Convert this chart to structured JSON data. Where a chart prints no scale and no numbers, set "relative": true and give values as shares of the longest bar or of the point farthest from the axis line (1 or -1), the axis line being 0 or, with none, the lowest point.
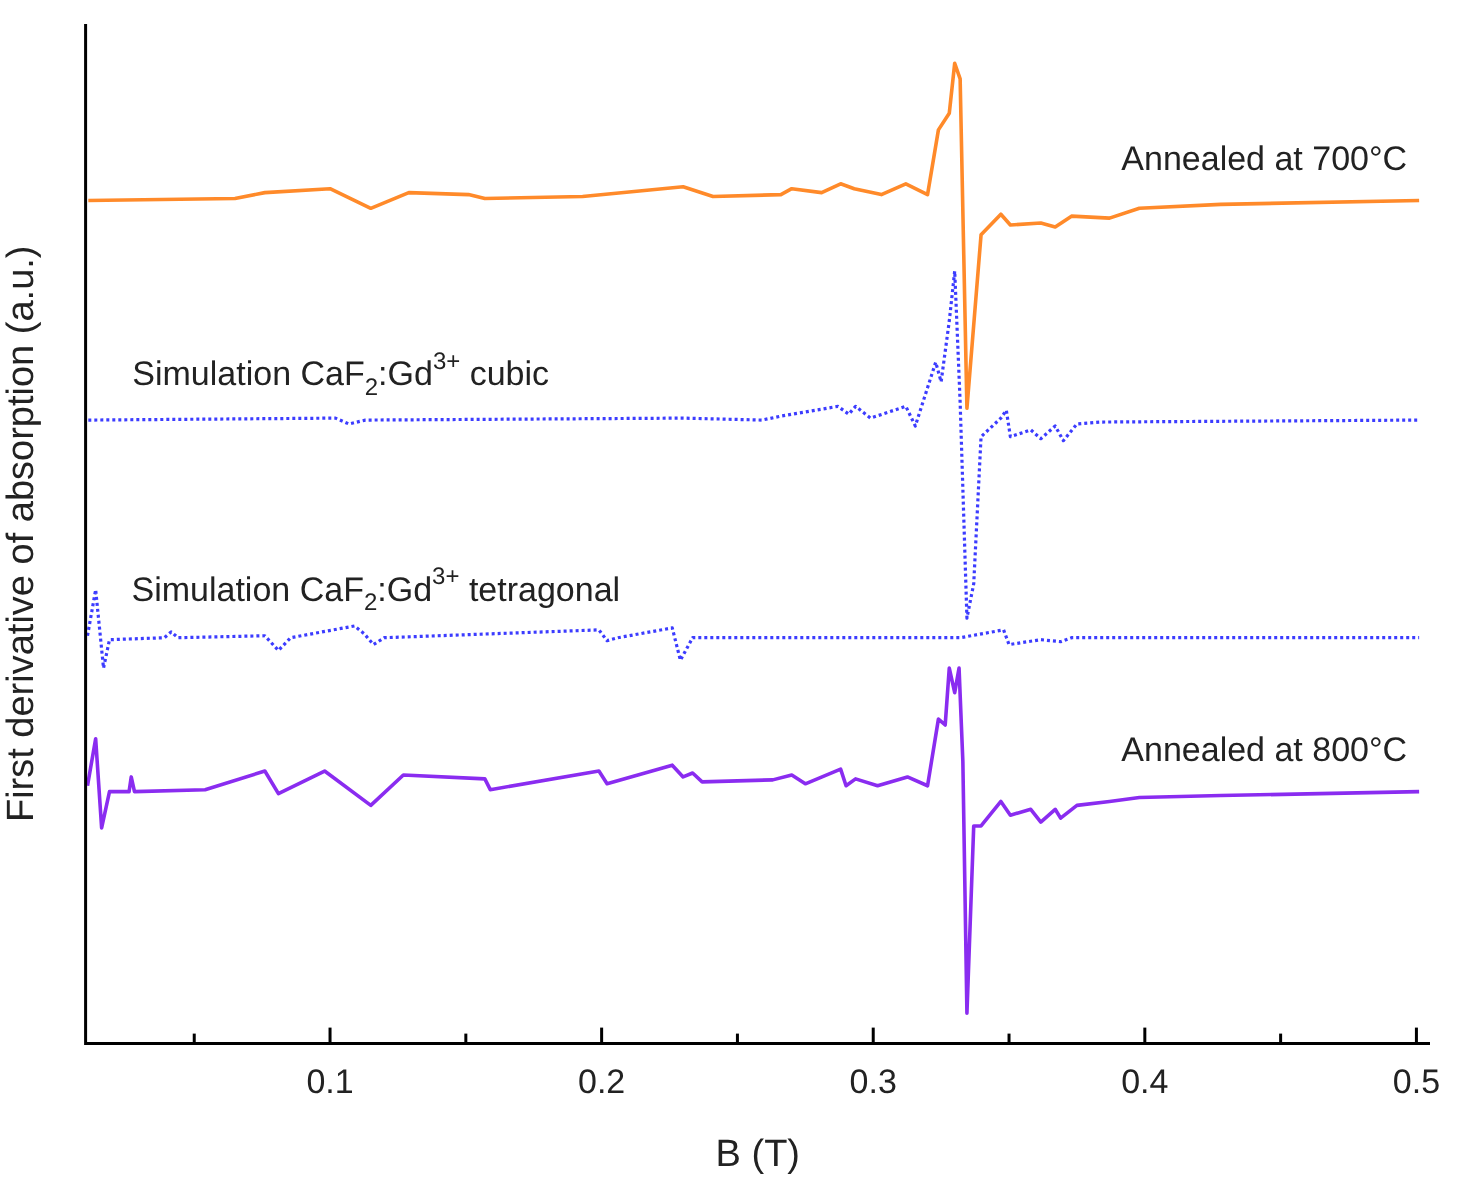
{
  "chart_data": {
    "type": "line",
    "relative": true,
    "xlabel": "B (T)",
    "ylabel": "First derivative of absorption (a.u.)",
    "xlim": [
      0.01,
      0.505
    ],
    "xticks": [
      {
        "value": 0.05,
        "label": null
      },
      0.1,
      {
        "value": 0.15,
        "label": null
      },
      0.2,
      {
        "value": 0.25,
        "label": null
      },
      0.3,
      {
        "value": 0.35,
        "label": null
      },
      0.4,
      {
        "value": 0.45,
        "label": null
      },
      0.5
    ],
    "grid": false,
    "legend": false,
    "marker": "none",
    "series": [
      {
        "name": "Annealed at 700°C",
        "color": "#ff8a2a",
        "line_style": "solid",
        "x": [
          0.011,
          0.065,
          0.076,
          0.1,
          0.115,
          0.129,
          0.151,
          0.157,
          0.193,
          0.23,
          0.241,
          0.266,
          0.27,
          0.281,
          0.288,
          0.293,
          0.303,
          0.312,
          0.32,
          0.324,
          0.328,
          0.33,
          0.332,
          0.3345,
          0.3397,
          0.347,
          0.3505,
          0.3617,
          0.367,
          0.373,
          0.387,
          0.398,
          0.428,
          0.501
        ],
        "values": [
          0.86,
          0.862,
          0.868,
          0.872,
          0.852,
          0.868,
          0.866,
          0.862,
          0.864,
          0.874,
          0.864,
          0.866,
          0.872,
          0.868,
          0.877,
          0.872,
          0.866,
          0.877,
          0.866,
          0.932,
          0.949,
          1.0,
          0.984,
          0.648,
          0.825,
          0.846,
          0.835,
          0.837,
          0.833,
          0.844,
          0.842,
          0.852,
          0.856,
          0.86
        ]
      },
      {
        "name": "Simulation CaF$_{2}$:Gd$^{3+}$ cubic",
        "color": "#3c3cff",
        "line_style": "dotted",
        "x": [
          0.011,
          0.102,
          0.107,
          0.113,
          0.23,
          0.259,
          0.266,
          0.287,
          0.291,
          0.2935,
          0.299,
          0.312,
          0.3155,
          0.323,
          0.325,
          0.328,
          0.33,
          0.332,
          0.3345,
          0.337,
          0.3397,
          0.347,
          0.349,
          0.3505,
          0.358,
          0.3617,
          0.367,
          0.37,
          0.375,
          0.384,
          0.501
        ],
        "values": [
          0.636,
          0.638,
          0.632,
          0.636,
          0.638,
          0.636,
          0.64,
          0.65,
          0.642,
          0.65,
          0.638,
          0.65,
          0.63,
          0.695,
          0.675,
          0.737,
          0.788,
          0.654,
          0.434,
          0.469,
          0.619,
          0.638,
          0.646,
          0.619,
          0.626,
          0.617,
          0.63,
          0.615,
          0.632,
          0.634,
          0.636
        ]
      },
      {
        "name": "Simulation CaF$_{2}$:Gd$^{3+}$ tetragonal",
        "color": "#3c3cff",
        "line_style": "dotted",
        "x": [
          0.0107,
          0.0137,
          0.0166,
          0.0188,
          0.039,
          0.0415,
          0.044,
          0.076,
          0.081,
          0.0855,
          0.109,
          0.1126,
          0.116,
          0.12,
          0.199,
          0.202,
          0.206,
          0.226,
          0.229,
          0.2335,
          0.332,
          0.348,
          0.35,
          0.3617,
          0.369,
          0.373,
          0.501
        ],
        "values": [
          0.416,
          0.463,
          0.383,
          0.412,
          0.414,
          0.42,
          0.414,
          0.416,
          0.401,
          0.414,
          0.426,
          0.418,
          0.407,
          0.414,
          0.422,
          0.411,
          0.414,
          0.424,
          0.391,
          0.414,
          0.414,
          0.422,
          0.407,
          0.412,
          0.41,
          0.414,
          0.414
        ]
      },
      {
        "name": "Annealed at 800°C",
        "color": "#8a2cf0",
        "line_style": "solid",
        "x": [
          0.0107,
          0.0137,
          0.0159,
          0.0188,
          0.026,
          0.0268,
          0.028,
          0.054,
          0.076,
          0.081,
          0.098,
          0.115,
          0.127,
          0.157,
          0.159,
          0.199,
          0.202,
          0.226,
          0.23,
          0.2335,
          0.237,
          0.263,
          0.27,
          0.275,
          0.288,
          0.29,
          0.2935,
          0.3016,
          0.3126,
          0.32,
          0.324,
          0.3265,
          0.328,
          0.33,
          0.3316,
          0.333,
          0.3345,
          0.337,
          0.3397,
          0.347,
          0.3505,
          0.358,
          0.3617,
          0.367,
          0.369,
          0.375,
          0.387,
          0.398,
          0.428,
          0.501
        ],
        "values": [
          0.263,
          0.311,
          0.22,
          0.257,
          0.257,
          0.272,
          0.257,
          0.259,
          0.278,
          0.255,
          0.278,
          0.243,
          0.274,
          0.27,
          0.259,
          0.278,
          0.265,
          0.284,
          0.272,
          0.276,
          0.267,
          0.269,
          0.274,
          0.265,
          0.28,
          0.263,
          0.27,
          0.263,
          0.272,
          0.263,
          0.331,
          0.325,
          0.383,
          0.358,
          0.383,
          0.288,
          0.031,
          0.222,
          0.222,
          0.247,
          0.233,
          0.239,
          0.226,
          0.239,
          0.23,
          0.243,
          0.247,
          0.251,
          0.253,
          0.257
        ]
      }
    ]
  }
}
